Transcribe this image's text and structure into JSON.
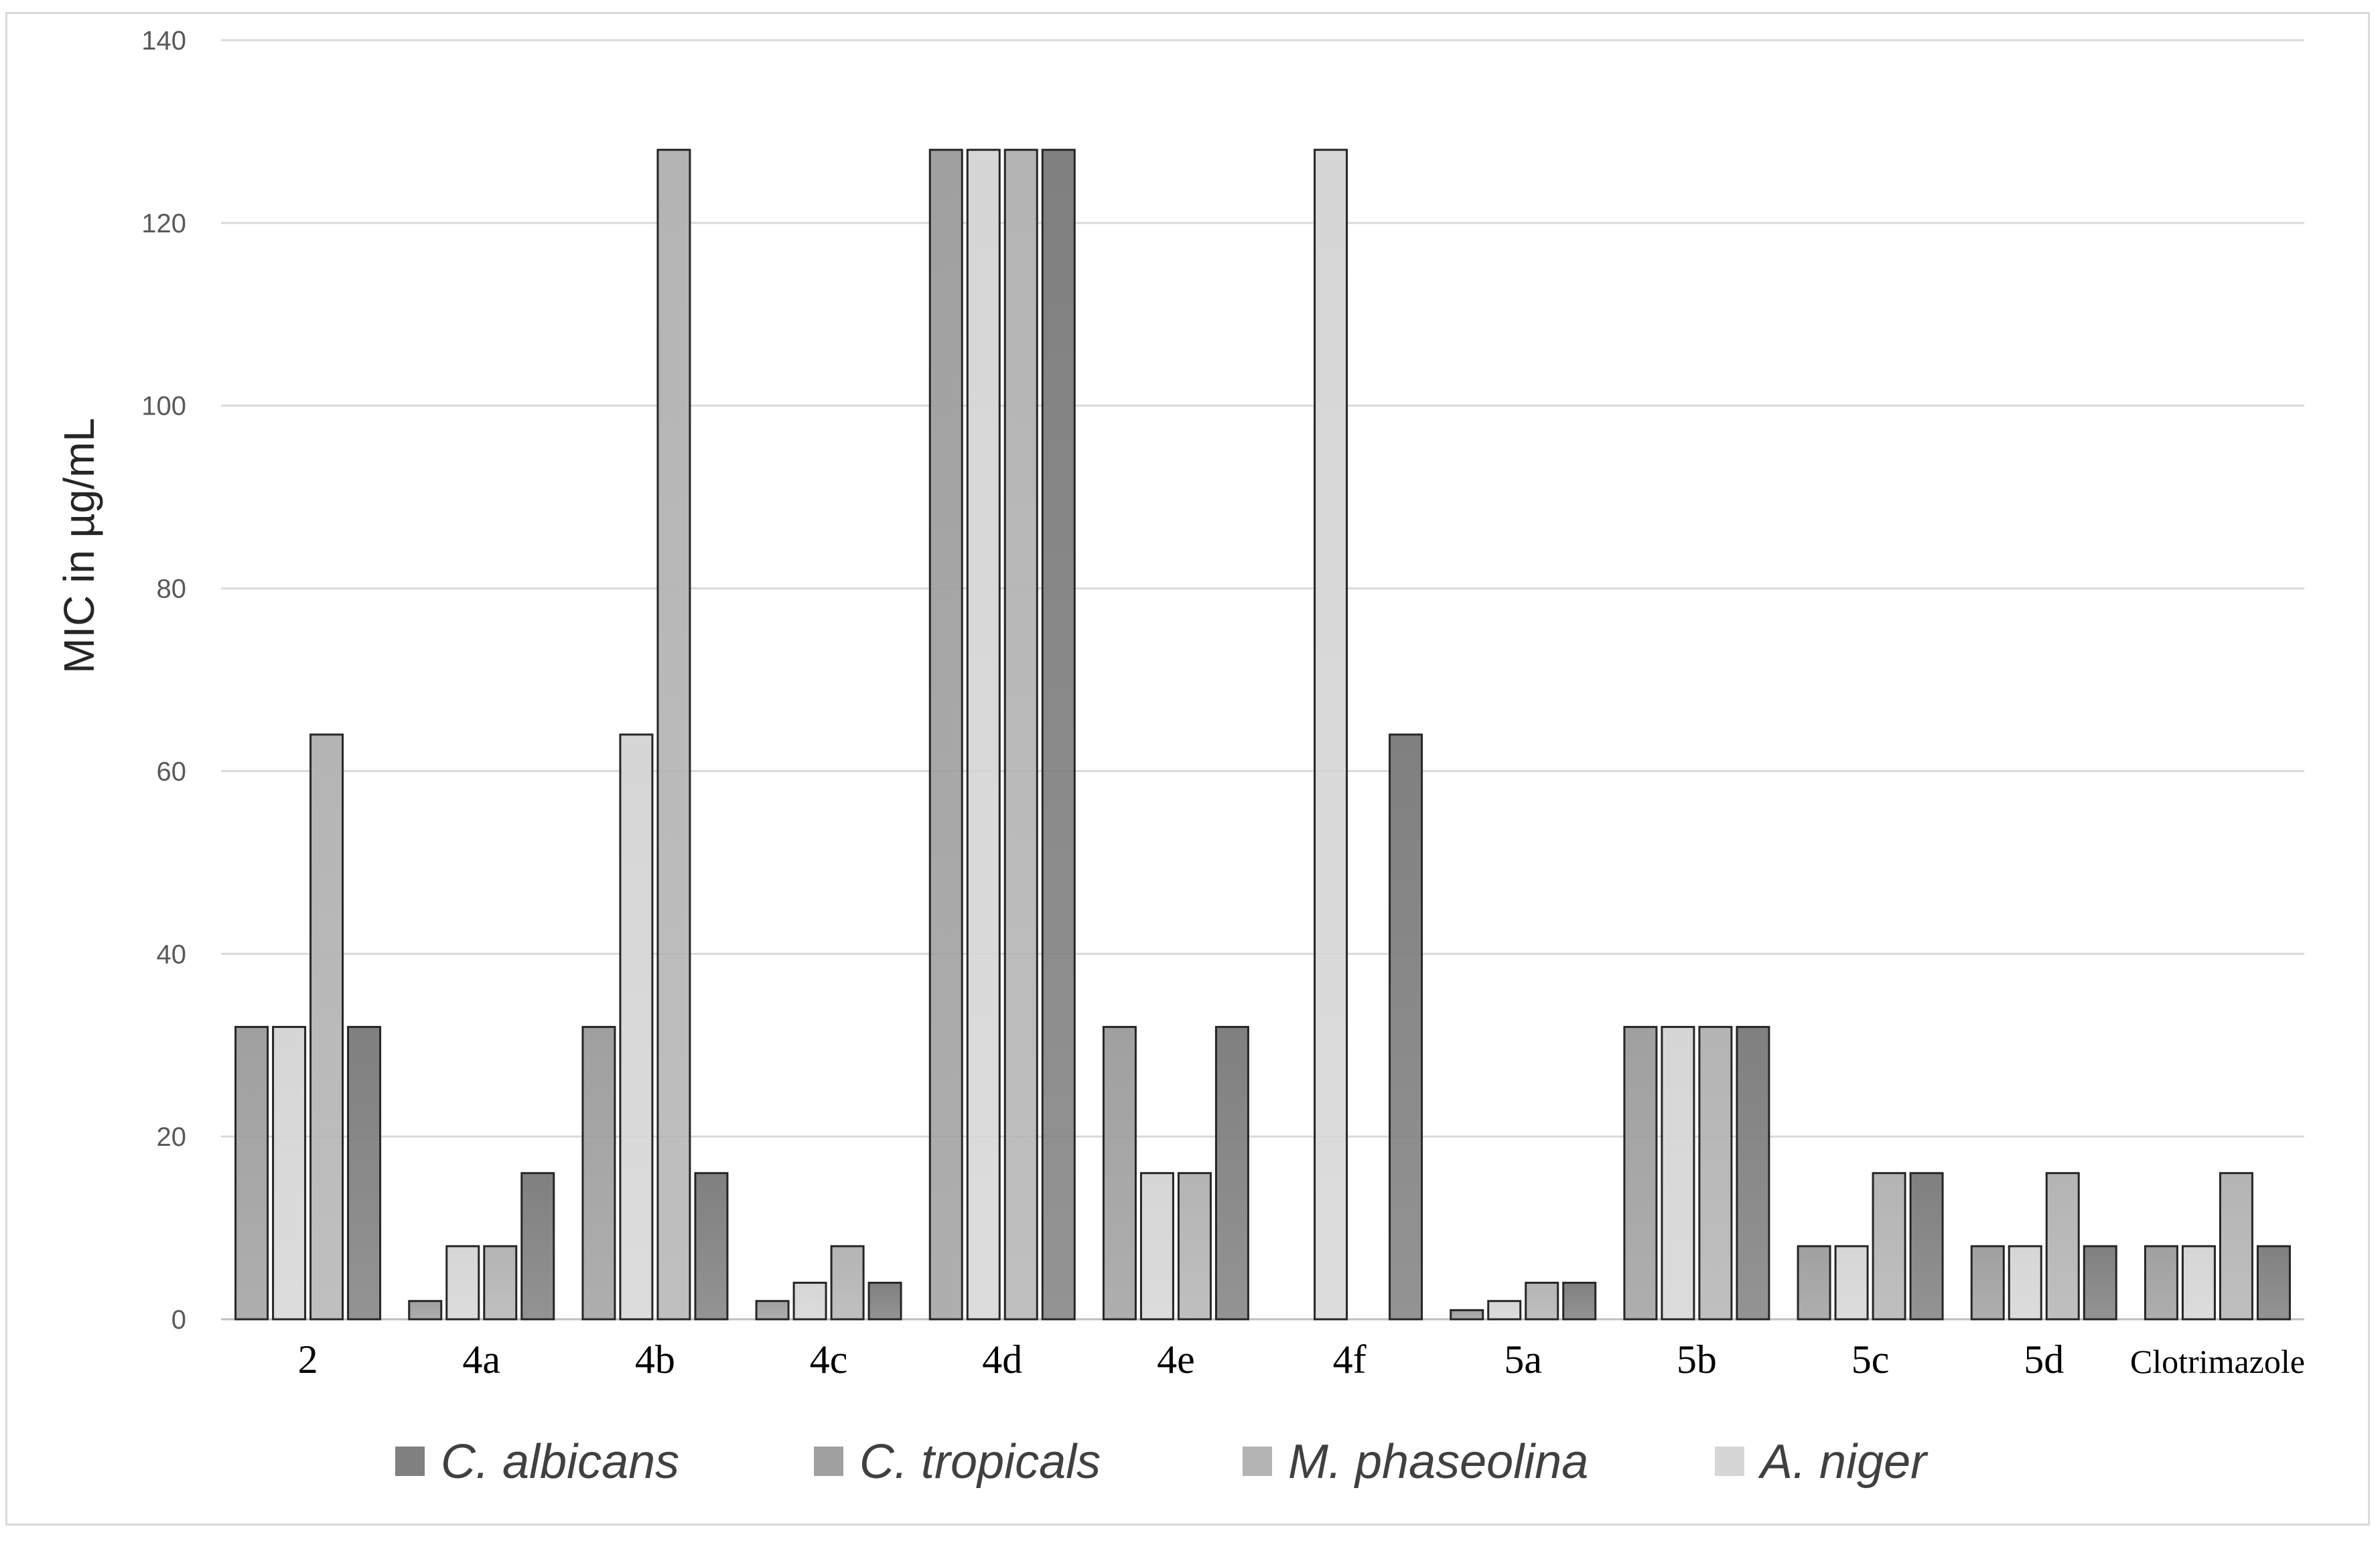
{
  "chart_data": {
    "type": "bar",
    "ylabel": "MIC in µg/mL",
    "xlabel": "",
    "ylim": [
      0,
      140
    ],
    "yticks": [
      0,
      20,
      40,
      60,
      80,
      100,
      120,
      140
    ],
    "grid": true,
    "legend_position": "bottom",
    "categories": [
      "2",
      "4a",
      "4b",
      "4c",
      "4d",
      "4e",
      "4f",
      "5a",
      "5b",
      "5c",
      "5d",
      "Clotrimazole"
    ],
    "series": [
      {
        "name": "C.  tropicals",
        "color": "#a0a0a0",
        "values": [
          32,
          2,
          32,
          2,
          128,
          32,
          0,
          1,
          32,
          8,
          8,
          8
        ]
      },
      {
        "name": "A.  niger",
        "color": "#d6d6d6",
        "values": [
          32,
          8,
          64,
          4,
          128,
          16,
          128,
          2,
          32,
          8,
          8,
          8
        ]
      },
      {
        "name": "M. phaseolina",
        "color": "#b4b4b4",
        "values": [
          64,
          8,
          128,
          8,
          128,
          16,
          0,
          4,
          32,
          16,
          16,
          16
        ]
      },
      {
        "name": "C.  albicans",
        "color": "#808080",
        "values": [
          32,
          16,
          16,
          4,
          128,
          32,
          64,
          4,
          32,
          16,
          8,
          8
        ]
      }
    ],
    "legend_order": [
      "C.  albicans",
      "C.  tropicals",
      "M. phaseolina",
      "A.  niger"
    ]
  }
}
